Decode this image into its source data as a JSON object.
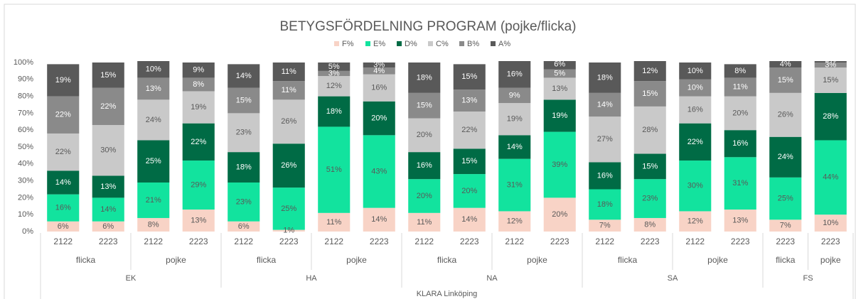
{
  "chart_data": {
    "type": "stacked_bar",
    "title": "BETYGSFÖRDELNING PROGRAM (pojke/flicka)",
    "category_root": "KLARA Linköping",
    "category_groups": [
      {
        "name": "EK",
        "subgroups": [
          {
            "name": "flicka",
            "categories": [
              "2122",
              "2223"
            ]
          },
          {
            "name": "pojke",
            "categories": [
              "2122",
              "2223"
            ]
          }
        ]
      },
      {
        "name": "HA",
        "subgroups": [
          {
            "name": "flicka",
            "categories": [
              "2122",
              "2223"
            ]
          },
          {
            "name": "pojke",
            "categories": [
              "2122",
              "2223"
            ]
          }
        ]
      },
      {
        "name": "NA",
        "subgroups": [
          {
            "name": "flicka",
            "categories": [
              "2122",
              "2223"
            ]
          },
          {
            "name": "pojke",
            "categories": [
              "2122",
              "2223"
            ]
          }
        ]
      },
      {
        "name": "SA",
        "subgroups": [
          {
            "name": "flicka",
            "categories": [
              "2122",
              "2223"
            ]
          },
          {
            "name": "pojke",
            "categories": [
              "2122",
              "2223"
            ]
          }
        ]
      },
      {
        "name": "FS",
        "subgroups": [
          {
            "name": "flicka",
            "categories": [
              "2223"
            ]
          },
          {
            "name": "pojke",
            "categories": [
              "2223"
            ]
          }
        ]
      }
    ],
    "series": [
      {
        "name": "F%",
        "color": "#f8d3c6",
        "values": [
          6,
          6,
          8,
          13,
          6,
          1,
          11,
          14,
          11,
          14,
          12,
          20,
          7,
          8,
          12,
          13,
          7,
          10
        ],
        "value_labels": [
          "6%",
          "6%",
          "8%",
          "13%",
          "6%",
          "1%",
          "11%",
          "14%",
          "11%",
          "14%",
          "12%",
          "20%",
          "7%",
          "8%",
          "12%",
          "13%",
          "7%",
          "10%"
        ]
      },
      {
        "name": "E%",
        "color": "#12e39e",
        "values": [
          16,
          14,
          21,
          29,
          23,
          25,
          51,
          43,
          20,
          20,
          31,
          39,
          18,
          23,
          30,
          31,
          25,
          44
        ],
        "value_labels": [
          "16%",
          "14%",
          "21%",
          "29%",
          "23%",
          "25%",
          "51%",
          "43%",
          "20%",
          "20%",
          "31%",
          "39%",
          "18%",
          "23%",
          "30%",
          "31%",
          "25%",
          "44%"
        ]
      },
      {
        "name": "D%",
        "color": "#006b45",
        "values": [
          14,
          13,
          25,
          22,
          18,
          26,
          18,
          20,
          16,
          15,
          14,
          19,
          16,
          15,
          22,
          16,
          24,
          28
        ],
        "value_labels": [
          "14%",
          "13%",
          "25%",
          "22%",
          "18%",
          "26%",
          "18%",
          "20%",
          "16%",
          "15%",
          "14%",
          "19%",
          "16%",
          "15%",
          "22%",
          "16%",
          "24%",
          "28%"
        ]
      },
      {
        "name": "C%",
        "color": "#c9c9c9",
        "values": [
          22,
          30,
          24,
          19,
          23,
          26,
          12,
          16,
          20,
          22,
          19,
          13,
          27,
          28,
          16,
          20,
          26,
          15
        ],
        "value_labels": [
          "22%",
          "30%",
          "24%",
          "19%",
          "23%",
          "26%",
          "12%",
          "16%",
          "20%",
          "22%",
          "19%",
          "13%",
          "27%",
          "28%",
          "16%",
          "20%",
          "26%",
          "15%"
        ]
      },
      {
        "name": "B%",
        "color": "#8a8a8a",
        "values": [
          22,
          22,
          13,
          8,
          15,
          11,
          3,
          4,
          15,
          13,
          9,
          5,
          14,
          15,
          10,
          11,
          15,
          3
        ],
        "value_labels": [
          "22%",
          "22%",
          "13%",
          "8%",
          "15%",
          "11%",
          "3%",
          "4%",
          "15%",
          "13%",
          "9%",
          "5%",
          "14%",
          "15%",
          "10%",
          "11%",
          "15%",
          "3%"
        ]
      },
      {
        "name": "A%",
        "color": "#595959",
        "values": [
          19,
          15,
          10,
          9,
          14,
          11,
          5,
          3,
          18,
          15,
          16,
          6,
          18,
          12,
          10,
          8,
          4,
          3
        ],
        "value_labels": [
          "19%",
          "15%",
          "10%",
          "9%",
          "14%",
          "11%",
          "5%",
          "3%",
          "18%",
          "15%",
          "16%",
          "6%",
          "18%",
          "12%",
          "10%",
          "8%",
          "4%",
          "3%"
        ]
      }
    ],
    "ylim": [
      0,
      100
    ],
    "yticks": [
      {
        "value": 0,
        "label": "0%"
      },
      {
        "value": 10,
        "label": "10%"
      },
      {
        "value": 20,
        "label": "20%"
      },
      {
        "value": 30,
        "label": "30%"
      },
      {
        "value": 40,
        "label": "40%"
      },
      {
        "value": 50,
        "label": "50%"
      },
      {
        "value": 60,
        "label": "60%"
      },
      {
        "value": 70,
        "label": "70%"
      },
      {
        "value": 80,
        "label": "80%"
      },
      {
        "value": 90,
        "label": "90%"
      },
      {
        "value": 100,
        "label": "100%"
      }
    ],
    "grid": false,
    "legend": "top"
  }
}
